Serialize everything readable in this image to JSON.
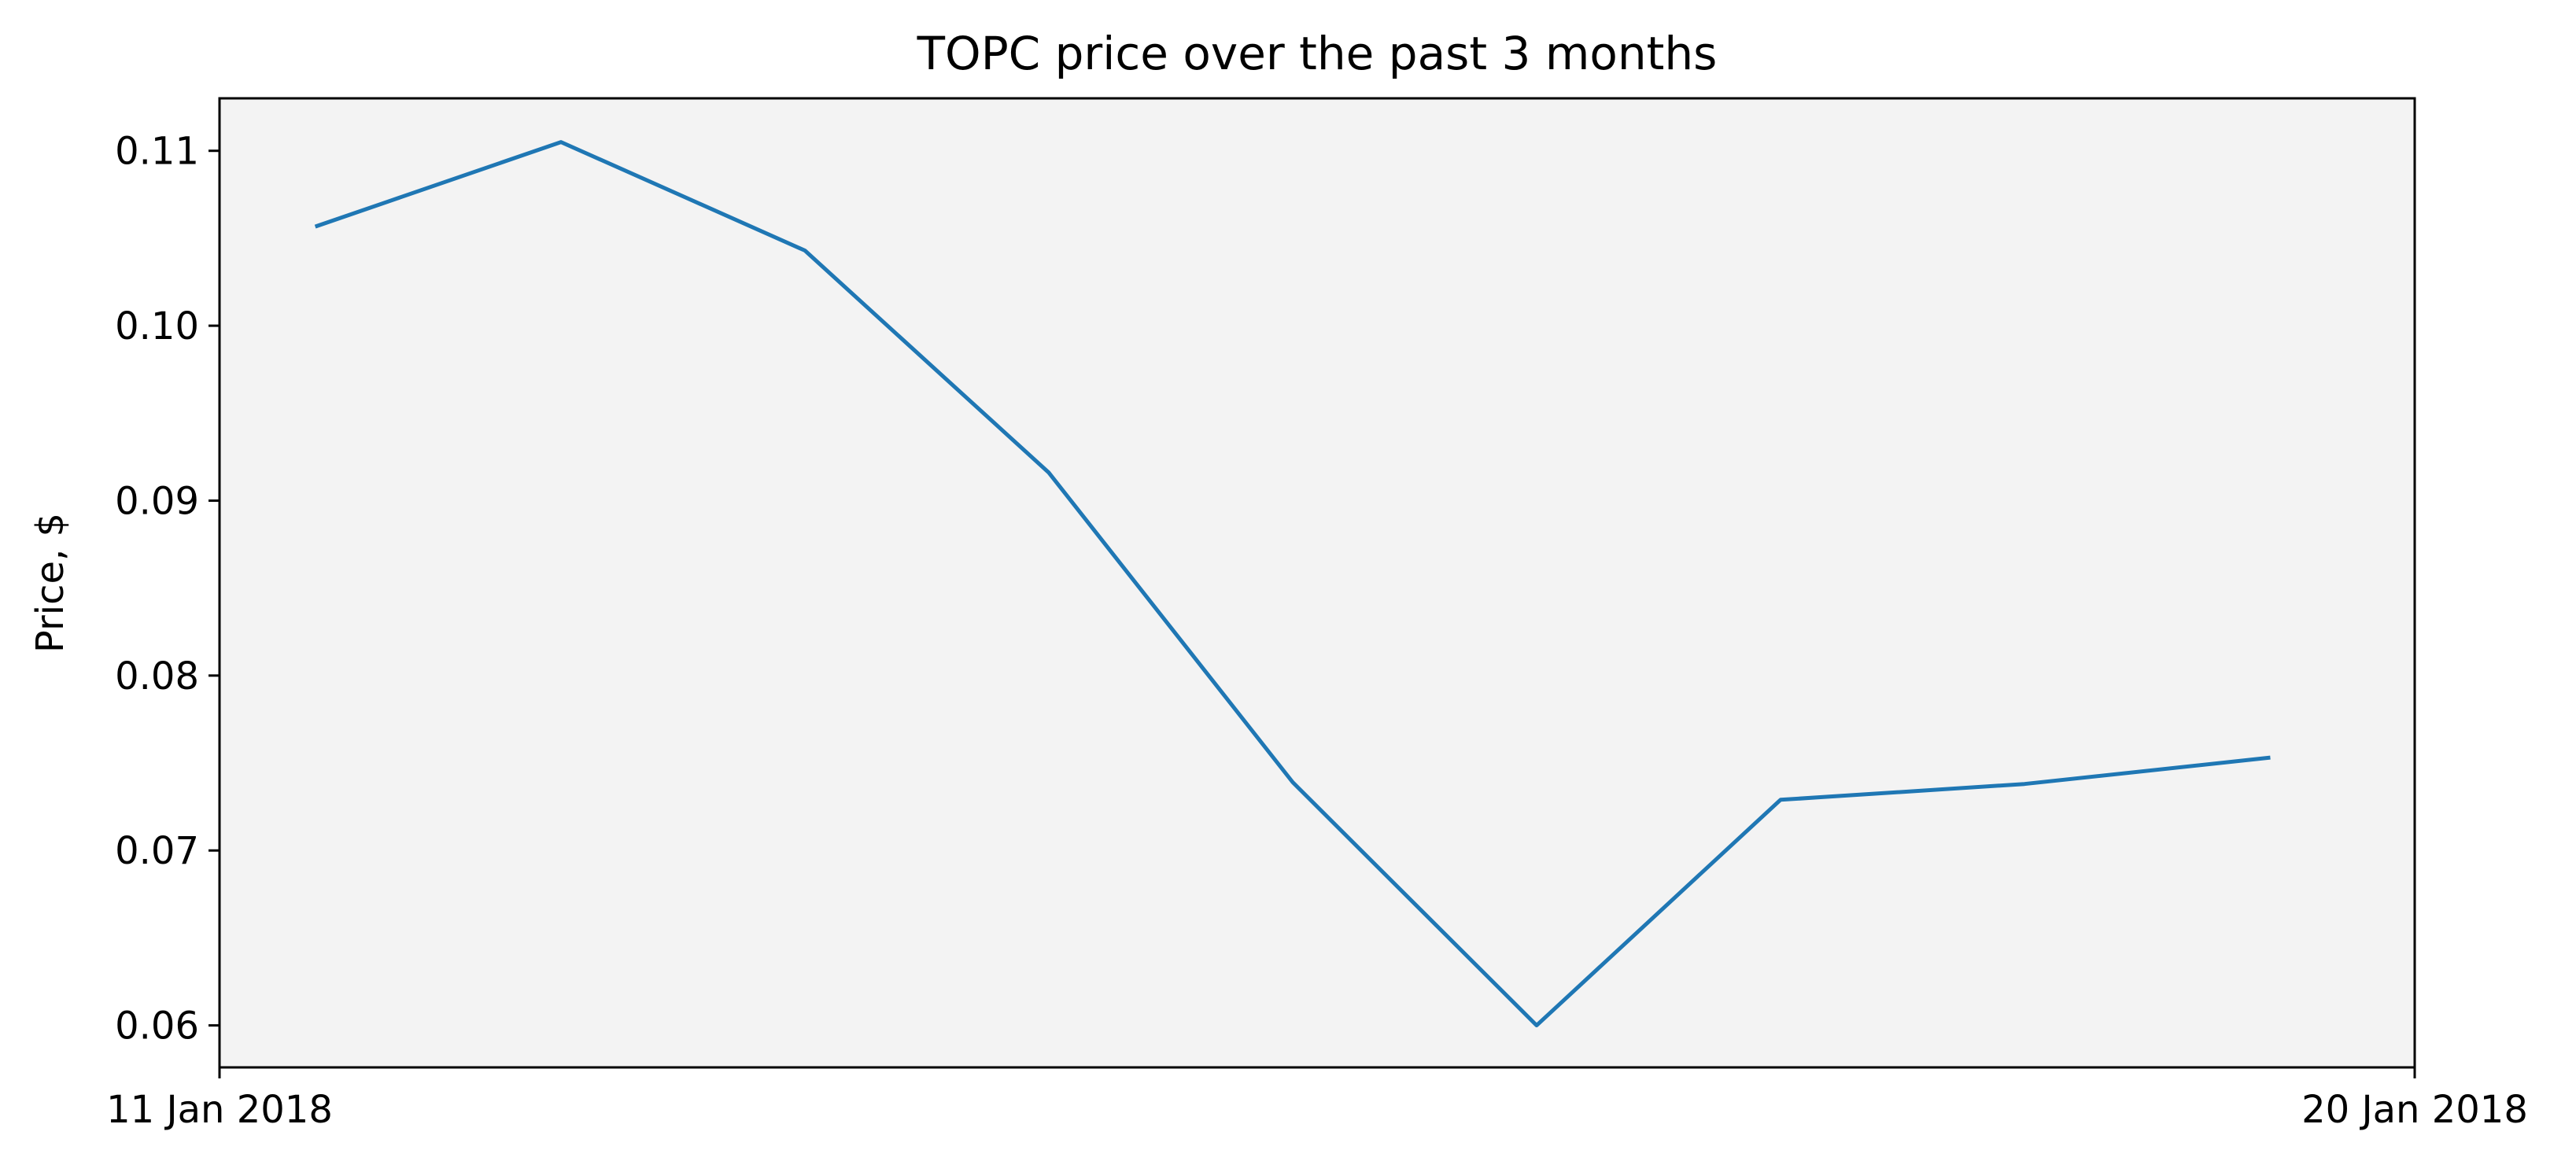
{
  "chart_data": {
    "type": "line",
    "title": "TOPC price over the past 3 months",
    "xlabel": "",
    "ylabel": "Price, $",
    "x_tick_labels": [
      "11 Jan 2018",
      "20 Jan 2018"
    ],
    "y_ticks": [
      0.06,
      0.07,
      0.08,
      0.09,
      0.1,
      0.11
    ],
    "y_tick_labels": [
      "0.06",
      "0.07",
      "0.08",
      "0.09",
      "0.10",
      "0.11"
    ],
    "ylim": [
      0.0576,
      0.113
    ],
    "xlim": [
      0,
      9
    ],
    "grid": false,
    "series": [
      {
        "name": "TOPC",
        "color": "#1f77b4",
        "x": [
          0.4,
          1.4,
          2.4,
          3.4,
          4.4,
          5.4,
          6.4,
          7.4,
          8.4
        ],
        "values": [
          0.1057,
          0.1105,
          0.1043,
          0.0916,
          0.0739,
          0.06,
          0.0729,
          0.0738,
          0.0753
        ]
      }
    ],
    "colors": {
      "plot_background": "#f3f3f3",
      "axes": "#000000",
      "line": "#1f77b4"
    }
  }
}
